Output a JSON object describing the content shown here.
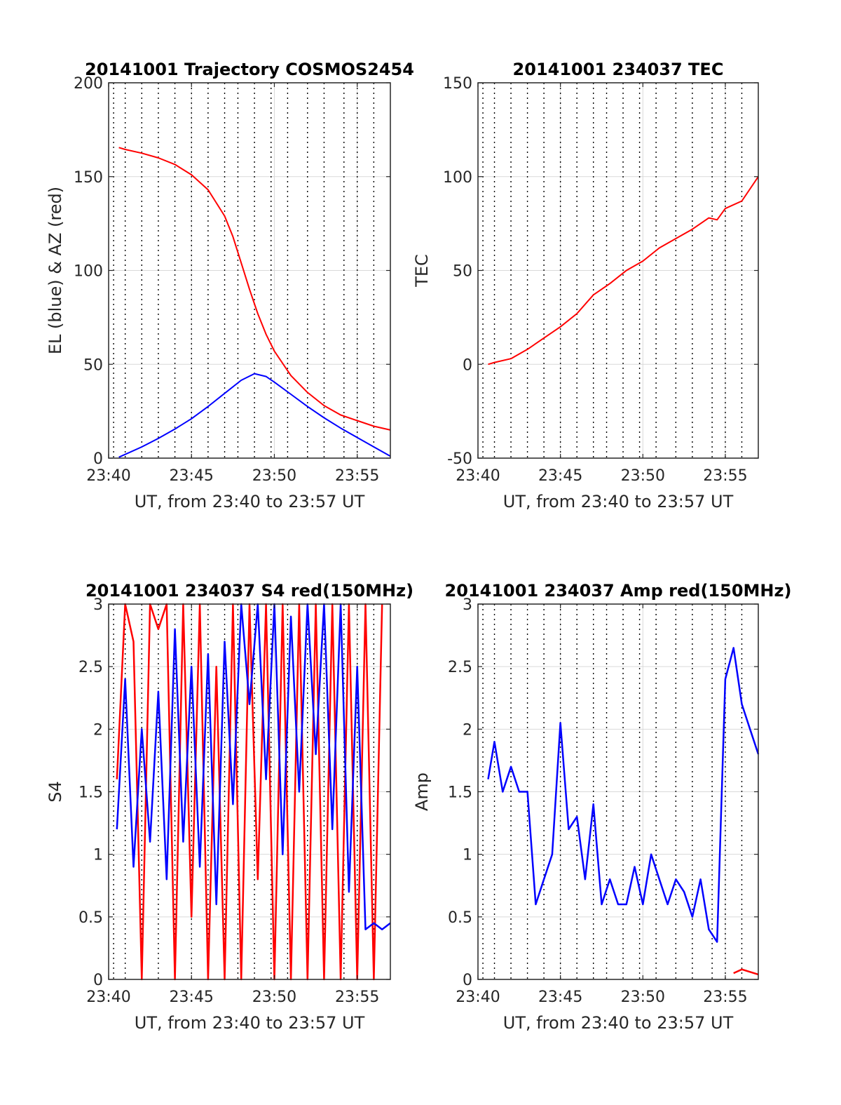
{
  "colors": {
    "blue": "#0000ff",
    "red": "#ff0000",
    "grid": "#d9d9d9",
    "vgrid": "#000000",
    "axis": "#262626"
  },
  "chart_data": [
    {
      "type": "line",
      "title": "20141001 Trajectory COSMOS2454",
      "xlabel": "UT, from 23:40 to 23:57 UT",
      "ylabel": "EL (blue) & AZ (red)",
      "xlim": [
        "23:40",
        "23:57"
      ],
      "xticks": [
        "23:40",
        "23:45",
        "23:50",
        "23:55"
      ],
      "ylim": [
        0,
        200
      ],
      "yticks": [
        "0",
        "50",
        "100",
        "150",
        "200"
      ],
      "grid": true,
      "series": [
        {
          "color": "blue",
          "x": [
            "23:40:37",
            "23:42",
            "23:43",
            "23:44",
            "23:45",
            "23:46",
            "23:47",
            "23:48",
            "23:48:48",
            "23:49:30",
            "23:50",
            "23:51",
            "23:52",
            "23:53",
            "23:54",
            "23:55",
            "23:56",
            "23:57"
          ],
          "y": [
            0.5,
            6,
            10.5,
            15.5,
            21,
            27.5,
            34.5,
            41.5,
            45,
            43.5,
            40.5,
            34,
            27.5,
            21.5,
            16,
            11,
            6,
            1
          ]
        },
        {
          "color": "red",
          "x": [
            "23:40:37",
            "23:41",
            "23:42",
            "23:43",
            "23:44",
            "23:45",
            "23:46",
            "23:47",
            "23:47:30",
            "23:48",
            "23:48:30",
            "23:49",
            "23:49:30",
            "23:50",
            "23:51",
            "23:52",
            "23:53",
            "23:54",
            "23:55",
            "23:56",
            "23:57"
          ],
          "y": [
            165.5,
            164.5,
            162.5,
            160,
            156.5,
            151,
            143,
            129,
            118,
            104,
            90,
            77,
            66,
            57,
            44,
            35,
            28,
            23,
            20,
            17,
            15
          ]
        }
      ]
    },
    {
      "type": "line",
      "title": "20141001 234037 TEC",
      "xlabel": "UT, from 23:40 to 23:57 UT",
      "ylabel": "TEC",
      "xlim": [
        "23:40",
        "23:57"
      ],
      "xticks": [
        "23:40",
        "23:45",
        "23:50",
        "23:55"
      ],
      "ylim": [
        -50,
        150
      ],
      "yticks": [
        "-50",
        "0",
        "50",
        "100",
        "150"
      ],
      "grid": true,
      "series": [
        {
          "color": "red",
          "x": [
            "23:40:37",
            "23:41",
            "23:42",
            "23:43",
            "23:44",
            "23:45",
            "23:46",
            "23:47",
            "23:48",
            "23:49",
            "23:50",
            "23:51",
            "23:52",
            "23:53",
            "23:54",
            "23:54:30",
            "23:55",
            "23:56",
            "23:57"
          ],
          "y": [
            0,
            1,
            3,
            8,
            14,
            20,
            27,
            37,
            43,
            50,
            55,
            62,
            67,
            72,
            78,
            77,
            83,
            87,
            100
          ]
        }
      ]
    },
    {
      "type": "line",
      "title": "20141001 234037 S4 red(150MHz)",
      "xlabel": "UT, from 23:40 to 23:57 UT",
      "ylabel": "S4",
      "xlim": [
        "23:40",
        "23:57"
      ],
      "xticks": [
        "23:40",
        "23:45",
        "23:50",
        "23:55"
      ],
      "ylim": [
        0,
        3
      ],
      "yticks": [
        "0",
        "0.5",
        "1",
        "1.5",
        "2",
        "2.5",
        "3"
      ],
      "grid": true,
      "series": [
        {
          "color": "red",
          "x": [
            "23:40:30",
            "23:41",
            "23:41:30",
            "23:42",
            "23:42:30",
            "23:43",
            "23:43:30",
            "23:44",
            "23:44:30",
            "23:45",
            "23:45:30",
            "23:46",
            "23:46:30",
            "23:47",
            "23:47:30",
            "23:48",
            "23:48:30",
            "23:49",
            "23:49:30",
            "23:50",
            "23:50:30",
            "23:51",
            "23:51:30",
            "23:52",
            "23:52:30",
            "23:53",
            "23:53:30",
            "23:54",
            "23:54:30",
            "23:55",
            "23:55:30",
            "23:56",
            "23:56:30"
          ],
          "y": [
            1.6,
            3,
            2.7,
            0,
            3,
            2.8,
            3,
            0,
            3,
            0.5,
            3,
            0,
            2.5,
            0,
            3,
            0,
            3,
            0.8,
            3,
            0,
            3,
            0,
            3,
            0,
            3,
            0,
            3,
            0,
            3,
            0,
            3,
            0,
            3
          ]
        },
        {
          "color": "blue",
          "x": [
            "23:40:30",
            "23:41",
            "23:41:30",
            "23:42",
            "23:42:30",
            "23:43",
            "23:43:30",
            "23:44",
            "23:44:30",
            "23:45",
            "23:45:30",
            "23:46",
            "23:46:30",
            "23:47",
            "23:47:30",
            "23:48",
            "23:48:30",
            "23:49",
            "23:49:30",
            "23:50",
            "23:50:30",
            "23:51",
            "23:51:30",
            "23:52",
            "23:52:30",
            "23:53",
            "23:53:30",
            "23:54",
            "23:54:30",
            "23:55",
            "23:55:30",
            "23:56",
            "23:56:30",
            "23:57"
          ],
          "y": [
            1.2,
            2.4,
            0.9,
            2.0,
            1.1,
            2.3,
            0.8,
            2.8,
            1.1,
            2.5,
            0.9,
            2.6,
            0.6,
            2.7,
            1.4,
            3,
            2.2,
            3,
            1.6,
            3,
            1.0,
            2.9,
            1.5,
            3,
            1.8,
            3,
            1.2,
            3,
            0.7,
            2.5,
            0.4,
            0.45,
            0.4,
            0.45
          ]
        }
      ]
    },
    {
      "type": "line",
      "title": "20141001 234037 Amp red(150MHz)",
      "xlabel": "UT, from 23:40 to 23:57 UT",
      "ylabel": "Amp",
      "xlim": [
        "23:40",
        "23:57"
      ],
      "xticks": [
        "23:40",
        "23:45",
        "23:50",
        "23:55"
      ],
      "ylim": [
        0,
        3
      ],
      "yticks": [
        "0",
        "0.5",
        "1",
        "1.5",
        "2",
        "2.5",
        "3"
      ],
      "grid": true,
      "series": [
        {
          "color": "blue",
          "x": [
            "23:40:37",
            "23:41",
            "23:41:30",
            "23:42",
            "23:42:30",
            "23:43",
            "23:43:30",
            "23:44",
            "23:44:30",
            "23:45",
            "23:45:30",
            "23:46",
            "23:46:30",
            "23:47",
            "23:47:30",
            "23:48",
            "23:48:30",
            "23:49",
            "23:49:30",
            "23:50",
            "23:50:30",
            "23:51",
            "23:51:30",
            "23:52",
            "23:52:30",
            "23:53",
            "23:53:30",
            "23:54",
            "23:54:30",
            "23:55",
            "23:55:30",
            "23:56",
            "23:56:30",
            "23:57"
          ],
          "y": [
            1.6,
            1.9,
            1.5,
            1.7,
            1.5,
            1.5,
            0.6,
            0.8,
            1.0,
            2.05,
            1.2,
            1.3,
            0.8,
            1.4,
            0.6,
            0.8,
            0.6,
            0.6,
            0.9,
            0.6,
            1.0,
            0.8,
            0.6,
            0.8,
            0.7,
            0.5,
            0.8,
            0.4,
            0.3,
            2.4,
            2.65,
            2.2,
            2.0,
            1.8
          ]
        },
        {
          "color": "red",
          "x": [
            "23:55:30",
            "23:56",
            "23:56:30",
            "23:57"
          ],
          "y": [
            0.05,
            0.08,
            0.06,
            0.04
          ]
        }
      ]
    }
  ]
}
